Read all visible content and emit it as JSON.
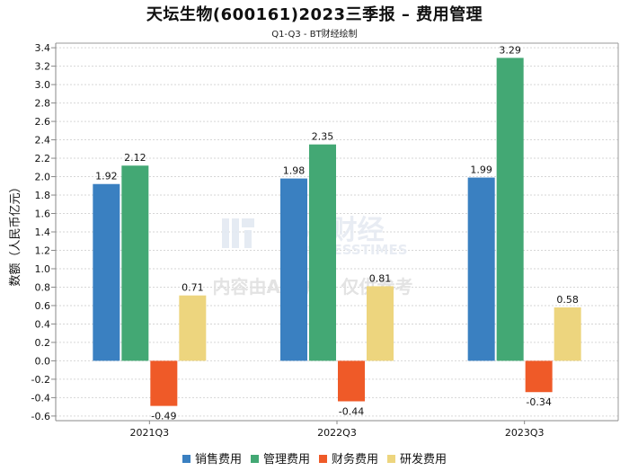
{
  "title": "天坛生物(600161)2023三季报 – 费用管理",
  "subtitle": "Q1-Q3 - BT财经绘制",
  "watermark": {
    "brand": "BT财经",
    "brand_en": "BUSINESSTIMES",
    "notice": "内容由AI生成，仅供参考"
  },
  "chart_data": {
    "type": "bar",
    "title": "天坛生物(600161)2023三季报 – 费用管理",
    "subtitle": "Q1-Q3 - BT财经绘制",
    "xlabel": "",
    "ylabel": "数额（人民币亿元）",
    "categories": [
      "2021Q3",
      "2022Q3",
      "2023Q3"
    ],
    "series": [
      {
        "name": "销售费用",
        "color": "#3a80c1",
        "values": [
          1.92,
          1.98,
          1.99
        ]
      },
      {
        "name": "管理费用",
        "color": "#43a874",
        "values": [
          2.12,
          2.35,
          3.29
        ]
      },
      {
        "name": "财务费用",
        "color": "#ef5a28",
        "values": [
          -0.49,
          -0.44,
          -0.34
        ]
      },
      {
        "name": "研发费用",
        "color": "#edd57e",
        "values": [
          0.71,
          0.81,
          0.58
        ]
      }
    ],
    "ylim": [
      -0.65,
      3.45
    ],
    "yticks": [
      -0.6,
      -0.4,
      -0.2,
      0.0,
      0.2,
      0.4,
      0.6,
      0.8,
      1.0,
      1.2,
      1.4,
      1.6,
      1.8,
      2.0,
      2.2,
      2.4,
      2.6,
      2.8,
      3.0,
      3.2,
      3.4
    ],
    "grid": true,
    "legend": "bottom"
  }
}
